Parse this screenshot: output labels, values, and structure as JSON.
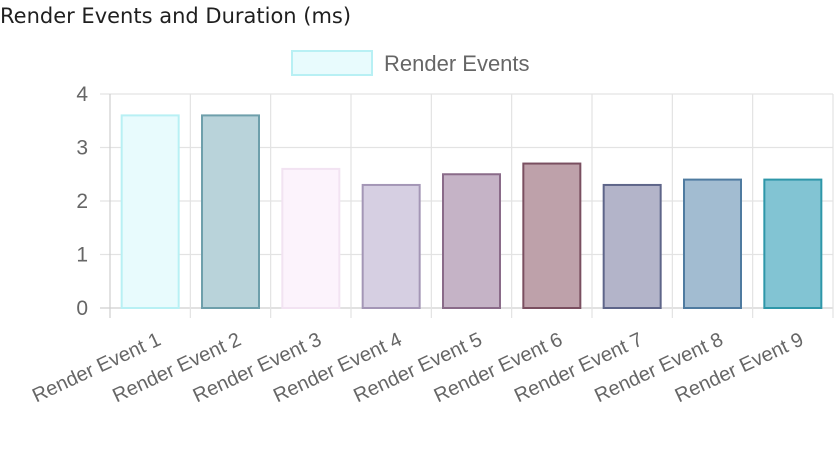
{
  "page": {
    "title": "Render Events and Duration (ms)"
  },
  "chart_data": {
    "type": "bar",
    "title": "Render Events and Duration (ms)",
    "xlabel": "",
    "ylabel": "",
    "ylim": [
      0,
      4
    ],
    "yticks": [
      0,
      1,
      2,
      3,
      4
    ],
    "grid": true,
    "legend_position": "top-center",
    "categories": [
      "Render Event 1",
      "Render Event 2",
      "Render Event 3",
      "Render Event 4",
      "Render Event 5",
      "Render Event 6",
      "Render Event 7",
      "Render Event 8",
      "Render Event 9"
    ],
    "series": [
      {
        "name": "Render Events",
        "values": [
          3.6,
          3.6,
          2.6,
          2.3,
          2.5,
          2.7,
          2.3,
          2.4,
          2.4
        ],
        "fill_colors": [
          "#e8fbfd",
          "#b9d3da",
          "#fcf3fc",
          "#d6cfe2",
          "#c5b3c6",
          "#bea1aa",
          "#b3b4c9",
          "#a2bcd1",
          "#82c4d3"
        ],
        "border_colors": [
          "#b8f0f4",
          "#6e9fab",
          "#f2e3f2",
          "#a496b6",
          "#8a6b89",
          "#7a4f60",
          "#5e6589",
          "#4f7ba0",
          "#2e97a9"
        ]
      }
    ],
    "legend_swatch": {
      "fill": "#e8fbfd",
      "border": "#b8f0f4"
    }
  }
}
